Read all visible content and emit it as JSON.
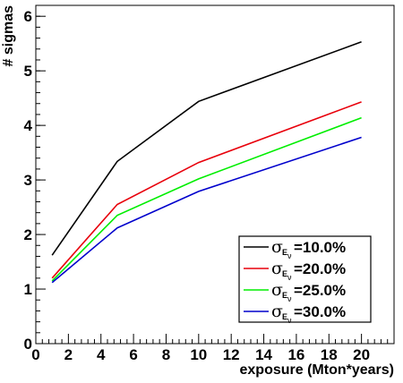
{
  "chart_data": {
    "type": "line",
    "title": "",
    "xlabel": "exposure (Mton*years)",
    "ylabel": "# sigmas",
    "xlim": [
      0,
      22
    ],
    "ylim": [
      0,
      6.2
    ],
    "x_ticks": [
      "0",
      "2",
      "4",
      "6",
      "8",
      "10",
      "12",
      "14",
      "16",
      "18",
      "20"
    ],
    "y_ticks": [
      "0",
      "1",
      "2",
      "3",
      "4",
      "5",
      "6"
    ],
    "x": [
      1,
      5,
      10,
      20
    ],
    "series": [
      {
        "name": "=10.0%",
        "color": "#000000",
        "values": [
          1.62,
          3.34,
          4.44,
          5.53
        ]
      },
      {
        "name": "=20.0%",
        "color": "#e8000b",
        "values": [
          1.2,
          2.55,
          3.32,
          4.43
        ]
      },
      {
        "name": "=25.0%",
        "color": "#00ee00",
        "values": [
          1.15,
          2.35,
          3.02,
          4.14
        ]
      },
      {
        "name": "=30.0%",
        "color": "#0000cc",
        "values": [
          1.12,
          2.12,
          2.79,
          3.78
        ]
      }
    ],
    "legend": {
      "placement": "bottom-right",
      "symbol": "σ",
      "subscript": "E",
      "subsubscript": "ν"
    },
    "grid": false
  }
}
